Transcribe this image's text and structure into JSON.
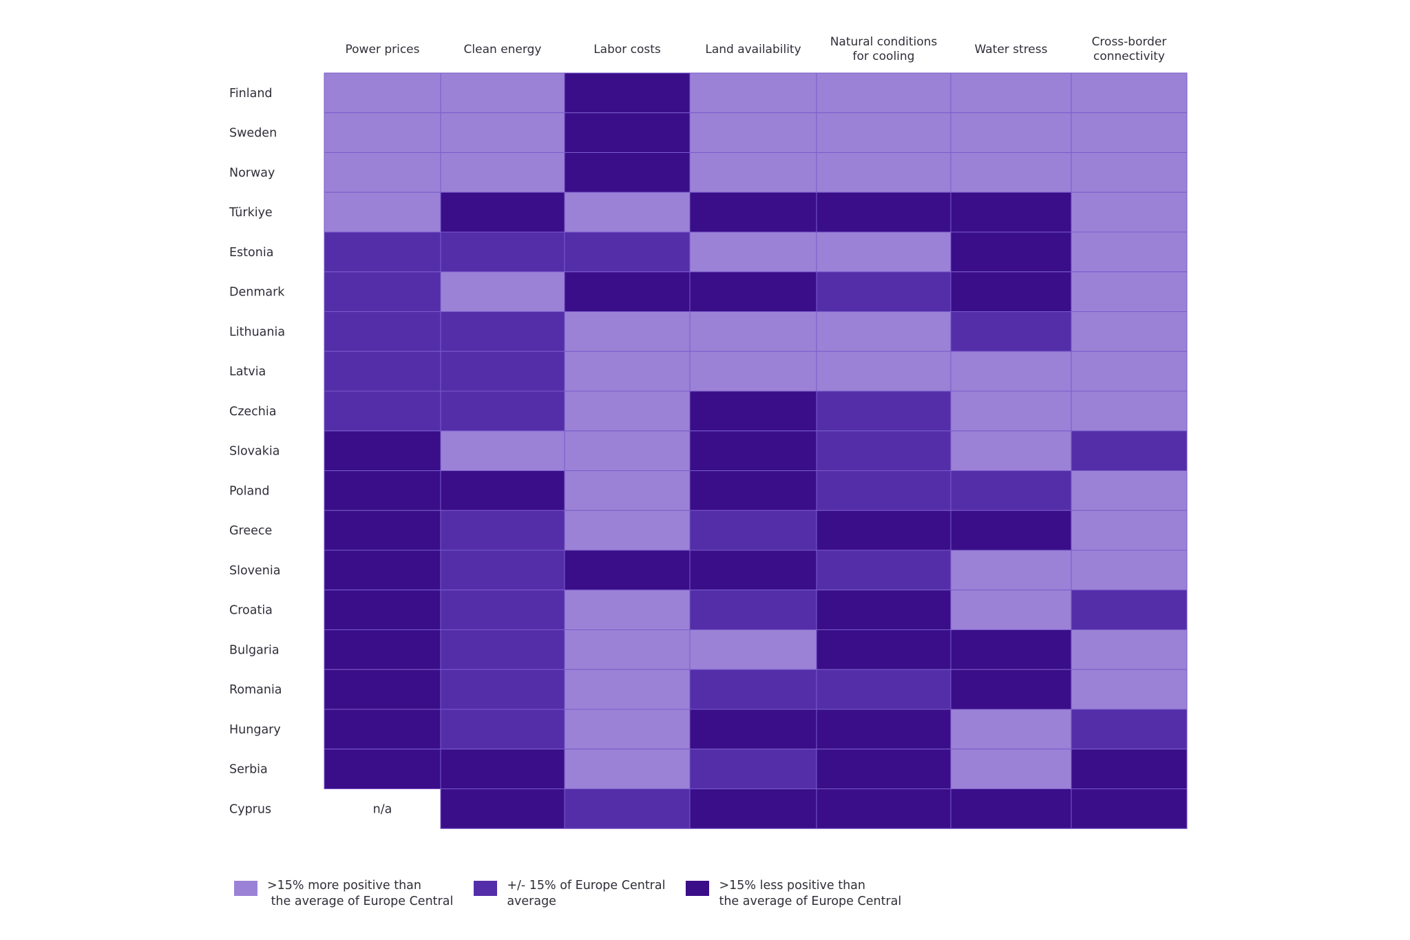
{
  "chart_data": {
    "type": "heatmap",
    "columns": [
      "Power prices",
      "Clean energy",
      "Labor costs",
      "Land availability",
      "Natural conditions\nfor cooling",
      "Water stress",
      "Cross-border\nconnectivity"
    ],
    "rows": [
      "Finland",
      "Sweden",
      "Norway",
      "Türkiye",
      "Estonia",
      "Denmark",
      "Lithuania",
      "Latvia",
      "Czechia",
      "Slovakia",
      "Poland",
      "Greece",
      "Slovenia",
      "Croatia",
      "Bulgaria",
      "Romania",
      "Hungary",
      "Serbia",
      "Cyprus"
    ],
    "values": [
      [
        "more",
        "more",
        "less",
        "more",
        "more",
        "more",
        "more"
      ],
      [
        "more",
        "more",
        "less",
        "more",
        "more",
        "more",
        "more"
      ],
      [
        "more",
        "more",
        "less",
        "more",
        "more",
        "more",
        "more"
      ],
      [
        "more",
        "less",
        "more",
        "less",
        "less",
        "less",
        "more"
      ],
      [
        "avg",
        "avg",
        "avg",
        "more",
        "more",
        "less",
        "more"
      ],
      [
        "avg",
        "more",
        "less",
        "less",
        "avg",
        "less",
        "more"
      ],
      [
        "avg",
        "avg",
        "more",
        "more",
        "more",
        "avg",
        "more"
      ],
      [
        "avg",
        "avg",
        "more",
        "more",
        "more",
        "more",
        "more"
      ],
      [
        "avg",
        "avg",
        "more",
        "less",
        "avg",
        "more",
        "more"
      ],
      [
        "less",
        "more",
        "more",
        "less",
        "avg",
        "more",
        "avg"
      ],
      [
        "less",
        "less",
        "more",
        "less",
        "avg",
        "avg",
        "more"
      ],
      [
        "less",
        "avg",
        "more",
        "avg",
        "less",
        "less",
        "more"
      ],
      [
        "less",
        "avg",
        "less",
        "less",
        "avg",
        "more",
        "more"
      ],
      [
        "less",
        "avg",
        "more",
        "avg",
        "less",
        "more",
        "avg"
      ],
      [
        "less",
        "avg",
        "more",
        "more",
        "less",
        "less",
        "more"
      ],
      [
        "less",
        "avg",
        "more",
        "avg",
        "avg",
        "less",
        "more"
      ],
      [
        "less",
        "avg",
        "more",
        "less",
        "less",
        "more",
        "avg"
      ],
      [
        "less",
        "less",
        "more",
        "avg",
        "less",
        "more",
        "less"
      ],
      [
        "na",
        "less",
        "avg",
        "less",
        "less",
        "less",
        "less"
      ]
    ],
    "na_label": "n/a",
    "legend": [
      {
        "key": "more",
        "label": ">15% more positive than\n the average of Europe Central",
        "color": "#9b82d6"
      },
      {
        "key": "avg",
        "label": "+/- 15% of Europe Central\naverage",
        "color": "#542ea8"
      },
      {
        "key": "less",
        "label": ">15% less positive than\nthe average of Europe Central",
        "color": "#3a0e88"
      }
    ],
    "cell_border_color": "#7a5ccc"
  }
}
